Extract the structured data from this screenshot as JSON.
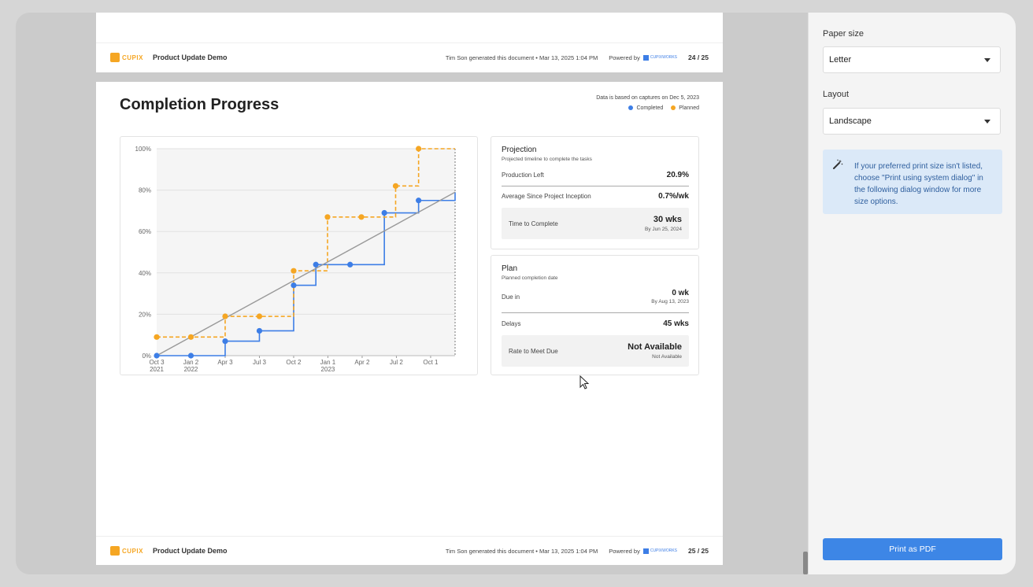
{
  "document": {
    "top_footer": {
      "logo_text": "CUPIX",
      "doc_name": "Product Update Demo",
      "generated": "Tim Son generated this document • Mar 13, 2025 1:04 PM",
      "powered_by": "Powered by",
      "powered_logo": "CUPIXWORKS",
      "page": "24 / 25"
    },
    "bottom_footer": {
      "logo_text": "CUPIX",
      "doc_name": "Product Update Demo",
      "generated": "Tim Son generated this document • Mar 13, 2025 1:04 PM",
      "powered_by": "Powered by",
      "powered_logo": "CUPIXWORKS",
      "page": "25 / 25"
    },
    "title": "Completion Progress",
    "data_note": "Data is based on captures on Dec 5, 2023",
    "legend": {
      "completed": "Completed",
      "planned": "Planned",
      "completed_color": "#3d7ee6",
      "planned_color": "#f5a623"
    },
    "projection": {
      "title": "Projection",
      "subtitle": "Projected timeline to complete the tasks",
      "production_left_label": "Production Left",
      "production_left_value": "20.9%",
      "avg_label": "Average Since Project Inception",
      "avg_value": "0.7%/wk",
      "time_label": "Time to Complete",
      "time_value": "30 wks",
      "time_sub": "By Jun 25, 2024"
    },
    "plan": {
      "title": "Plan",
      "subtitle": "Planned completion date",
      "due_label": "Due in",
      "due_value": "0 wk",
      "due_sub": "By Aug 13, 2023",
      "delays_label": "Delays",
      "delays_value": "45 wks",
      "rate_label": "Rate to Meet Due",
      "rate_value": "Not Available",
      "rate_sub": "Not Available"
    }
  },
  "print_panel": {
    "paper_size_label": "Paper size",
    "paper_size_value": "Letter",
    "layout_label": "Layout",
    "layout_value": "Landscape",
    "info_message": "If your preferred print size isn't listed, choose \"Print using system dialog\" in the following dialog window for more size options.",
    "print_button": "Print as PDF",
    "info_icon": "magic-wand-icon"
  },
  "chart_data": {
    "type": "line",
    "title": "",
    "xlabel": "",
    "ylabel": "",
    "x_ticks": [
      "Oct 3\n2021",
      "Jan 2\n2022",
      "Apr 3",
      "Jul 3",
      "Oct 2",
      "Jan 1\n2023",
      "Apr 2",
      "Jul 2",
      "Oct 1"
    ],
    "y_ticks": [
      "0%",
      "20%",
      "40%",
      "60%",
      "80%",
      "100%"
    ],
    "ylim": [
      0,
      100
    ],
    "xlim": [
      "2021-10-03",
      "2023-12-05"
    ],
    "grid": true,
    "legend_position": "top-right",
    "series": [
      {
        "name": "Completed",
        "color": "#3d7ee6",
        "step": true,
        "points": [
          {
            "x": "2021-10-03",
            "y": 0
          },
          {
            "x": "2022-01-02",
            "y": 0
          },
          {
            "x": "2022-04-03",
            "y": 7
          },
          {
            "x": "2022-07-03",
            "y": 12
          },
          {
            "x": "2022-10-02",
            "y": 34
          },
          {
            "x": "2022-11-30",
            "y": 44
          },
          {
            "x": "2023-03-01",
            "y": 44
          },
          {
            "x": "2023-05-31",
            "y": 69
          },
          {
            "x": "2023-08-30",
            "y": 75
          },
          {
            "x": "2023-12-05",
            "y": 79
          }
        ]
      },
      {
        "name": "Planned",
        "color": "#f5a623",
        "step": true,
        "dashed": true,
        "points": [
          {
            "x": "2021-10-03",
            "y": 9
          },
          {
            "x": "2022-01-02",
            "y": 9
          },
          {
            "x": "2022-04-03",
            "y": 19
          },
          {
            "x": "2022-07-03",
            "y": 19
          },
          {
            "x": "2022-10-02",
            "y": 41
          },
          {
            "x": "2022-12-31",
            "y": 67
          },
          {
            "x": "2023-03-31",
            "y": 67
          },
          {
            "x": "2023-06-30",
            "y": 82
          },
          {
            "x": "2023-08-30",
            "y": 100
          },
          {
            "x": "2023-12-05",
            "y": 100
          }
        ]
      },
      {
        "name": "",
        "color": "#999999",
        "trend": true,
        "points": [
          {
            "x": "2021-10-03",
            "y": 0
          },
          {
            "x": "2023-12-05",
            "y": 79
          }
        ]
      }
    ]
  }
}
